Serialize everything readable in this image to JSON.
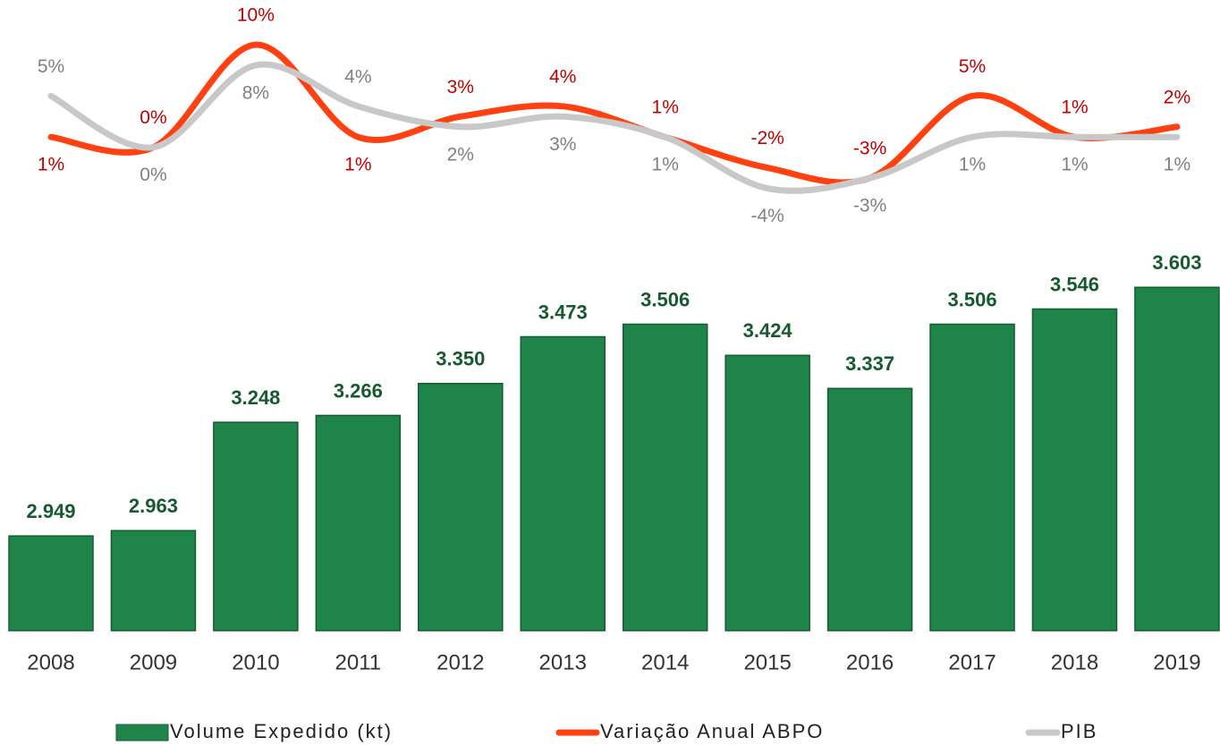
{
  "chart_data": {
    "type": "bar",
    "categories": [
      "2008",
      "2009",
      "2010",
      "2011",
      "2012",
      "2013",
      "2014",
      "2015",
      "2016",
      "2017",
      "2018",
      "2019"
    ],
    "series": [
      {
        "name": "Volume Expedido (kt)",
        "type": "bar",
        "color": "#1f8449",
        "values": [
          2949,
          2963,
          3248,
          3266,
          3350,
          3473,
          3506,
          3424,
          3337,
          3506,
          3546,
          3603
        ],
        "value_labels": [
          "2.949",
          "2.963",
          "3.248",
          "3.266",
          "3.350",
          "3.473",
          "3.506",
          "3.424",
          "3.337",
          "3.506",
          "3.546",
          "3.603"
        ]
      },
      {
        "name": "Variação Anual ABPO",
        "type": "line",
        "axis": "y2",
        "color": "#ff4010",
        "label_color": "#c00000",
        "values": [
          1,
          0,
          10,
          1,
          3,
          4,
          1,
          -2,
          -3,
          5,
          1,
          2
        ],
        "value_labels": [
          "1%",
          "0%",
          "10%",
          "1%",
          "3%",
          "4%",
          "1%",
          "-2%",
          "-3%",
          "5%",
          "1%",
          "2%"
        ]
      },
      {
        "name": "PIB",
        "type": "line",
        "axis": "y2",
        "color": "#c8c8c8",
        "label_color": "#808080",
        "values": [
          5,
          0,
          8,
          4,
          2,
          3,
          1,
          -4,
          -3,
          1,
          1,
          1
        ],
        "value_labels": [
          "5%",
          "0%",
          "8%",
          "4%",
          "2%",
          "3%",
          "1%",
          "-4%",
          "-3%",
          "1%",
          "1%",
          "1%"
        ]
      }
    ],
    "ylim": [
      2700,
      3700
    ],
    "y2lim": [
      -5,
      10
    ]
  }
}
